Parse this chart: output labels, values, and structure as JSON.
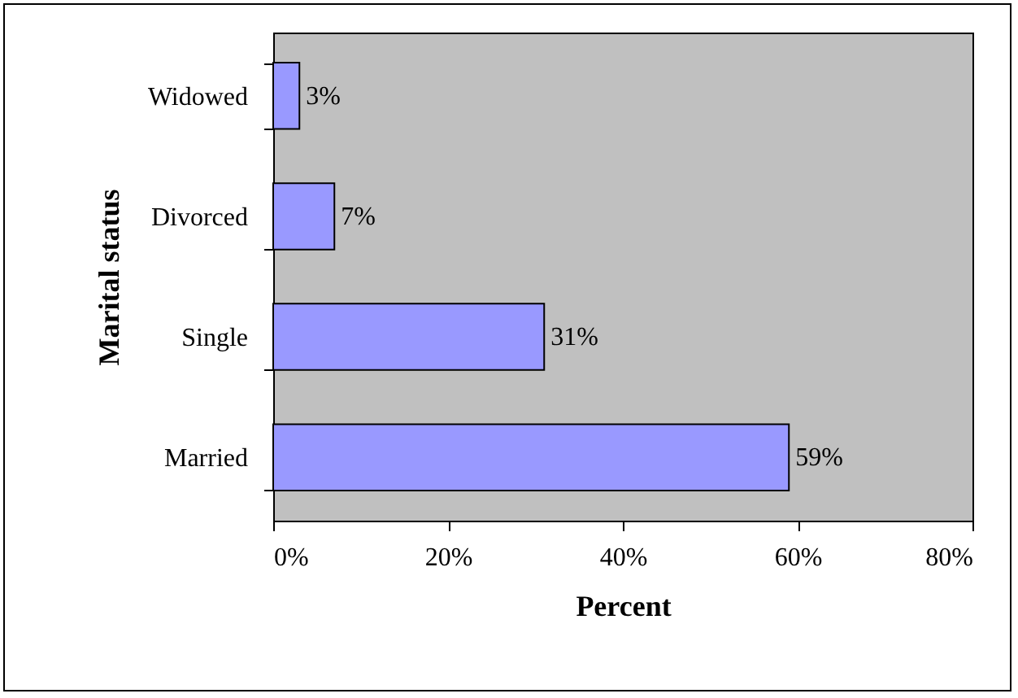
{
  "chart_data": {
    "type": "bar",
    "orientation": "horizontal",
    "xlabel": "Percent",
    "ylabel": "Marital status",
    "categories": [
      "Widowed",
      "Divorced",
      "Single",
      "Married"
    ],
    "values": [
      3,
      7,
      31,
      59
    ],
    "color": "#9999ff",
    "value_labels": [
      "3%",
      "7%",
      "31%",
      "59%"
    ],
    "xlim": [
      0,
      80
    ],
    "xticks": [
      {
        "value": 0,
        "label": "0%"
      },
      {
        "value": 20,
        "label": "20%"
      },
      {
        "value": 40,
        "label": "40%"
      },
      {
        "value": 60,
        "label": "60%"
      },
      {
        "value": 80,
        "label": "80%"
      }
    ],
    "grid": false
  }
}
